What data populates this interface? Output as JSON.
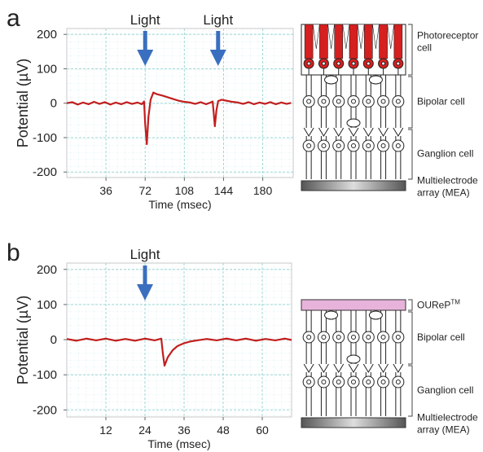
{
  "chart_data": [
    {
      "type": "line",
      "xlabel": "Time (msec)",
      "ylabel": "Potential (µV)",
      "xlim": [
        0,
        208
      ],
      "ylim": [
        -216,
        217
      ],
      "xticks": [
        36,
        72,
        108,
        144,
        180
      ],
      "yticks": [
        -200,
        -100,
        0,
        100,
        200
      ],
      "grid": true,
      "series": [
        {
          "color": "#c21f1f",
          "x": [
            0,
            5,
            10,
            15,
            20,
            25,
            30,
            35,
            40,
            45,
            50,
            55,
            60,
            65,
            69,
            71,
            72,
            73.5,
            75,
            77,
            79.5,
            83,
            88,
            93,
            98,
            103,
            108,
            113,
            118,
            123,
            128,
            132,
            134,
            135,
            136,
            137.5,
            139,
            142,
            147,
            152,
            157,
            162,
            167,
            172,
            177,
            182,
            187,
            192,
            197,
            202,
            206
          ],
          "values": [
            0,
            3,
            -4,
            2,
            -3,
            4,
            -2,
            3,
            -4,
            2,
            -3,
            3,
            -2,
            2,
            -3,
            5,
            -60,
            -119,
            -40,
            10,
            31,
            26,
            22,
            17,
            12,
            7,
            4,
            2,
            -2,
            3,
            -3,
            2,
            5,
            -30,
            -67,
            -20,
            6,
            10,
            7,
            4,
            2,
            -2,
            3,
            -3,
            2,
            -2,
            3,
            -3,
            2,
            -2,
            1
          ]
        }
      ],
      "annotations": [
        {
          "text": "Light",
          "x": 72
        },
        {
          "text": "Light",
          "x": 139
        }
      ]
    },
    {
      "type": "line",
      "xlabel": "Time (msec)",
      "ylabel": "Potential (µV)",
      "xlim": [
        0,
        69
      ],
      "ylim": [
        -220,
        218
      ],
      "xticks": [
        12,
        24,
        36,
        48,
        60
      ],
      "yticks": [
        -200,
        -100,
        0,
        100,
        200
      ],
      "grid": true,
      "series": [
        {
          "color": "#c21f1f",
          "x": [
            0,
            3,
            6,
            9,
            12,
            15,
            18,
            21,
            24,
            27,
            29,
            29.5,
            30,
            31,
            32.5,
            34,
            36,
            38,
            40,
            43,
            46,
            49,
            52,
            55,
            58,
            61,
            64,
            67,
            69
          ],
          "values": [
            2,
            -3,
            3,
            -2,
            3,
            -3,
            2,
            -3,
            3,
            -2,
            3,
            -40,
            -74,
            -50,
            -30,
            -18,
            -10,
            -5,
            -2,
            2,
            -2,
            3,
            -2,
            3,
            -3,
            2,
            -2,
            3,
            -1
          ]
        }
      ],
      "annotations": [
        {
          "text": "Light",
          "x": 24
        }
      ]
    }
  ],
  "panels": [
    "a",
    "b"
  ],
  "diagrams": [
    {
      "layers": [
        {
          "lines": [
            "Photoreceptor",
            "cell"
          ]
        },
        {
          "lines": [
            "Bipolar cell"
          ]
        },
        {
          "lines": [
            "Ganglion cell"
          ]
        },
        {
          "lines": [
            "Multielectrode",
            "array (MEA)"
          ]
        }
      ]
    },
    {
      "layers": [
        {
          "lines": [
            "OUReP"
          ],
          "superscript": "TM"
        },
        {
          "lines": [
            "Bipolar cell"
          ]
        },
        {
          "lines": [
            "Ganglion cell"
          ]
        },
        {
          "lines": [
            "Multielectrode",
            "array (MEA)"
          ]
        }
      ]
    }
  ]
}
